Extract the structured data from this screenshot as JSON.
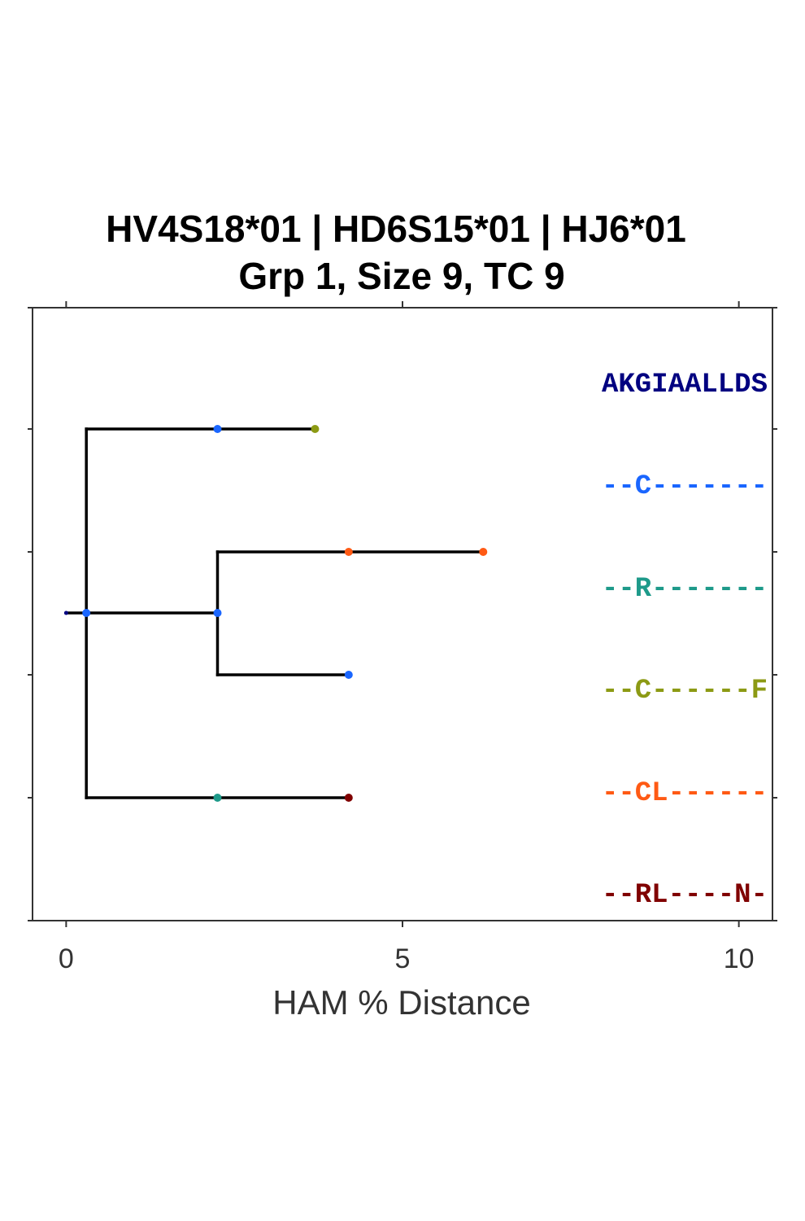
{
  "title": {
    "line1": "HV4S18*01 | HD6S15*01 | HJ6*01",
    "line2": "Grp 1, Size 9, TC 9"
  },
  "axis": {
    "xlabel": "HAM % Distance",
    "xlim": [
      -0.5,
      10.5
    ],
    "xticks": [
      "0",
      "5",
      "10"
    ],
    "xtick_values": [
      0,
      5,
      10
    ]
  },
  "colors": {
    "root": "#000080",
    "blue": "#1a66ff",
    "teal": "#1e9a8a",
    "olive": "#8c9a14",
    "orange": "#ff5a14",
    "maroon": "#800000"
  },
  "tree": {
    "root": {
      "x": 0,
      "color": "root"
    },
    "edges": [
      {
        "from": [
          0,
          "m"
        ],
        "to": [
          0.3,
          "m"
        ]
      },
      {
        "from": [
          0.3,
          "r1"
        ],
        "to": [
          0.3,
          "r5"
        ]
      },
      {
        "from": [
          0.3,
          "r1"
        ],
        "to": [
          3.7,
          "r1"
        ]
      },
      {
        "from": [
          0.3,
          "m"
        ],
        "to": [
          2.25,
          "m"
        ]
      },
      {
        "from": [
          2.25,
          "r2"
        ],
        "to": [
          2.25,
          "r4"
        ]
      },
      {
        "from": [
          2.25,
          "r2"
        ],
        "to": [
          6.2,
          "r2"
        ]
      },
      {
        "from": [
          2.25,
          "r4"
        ],
        "to": [
          4.2,
          "r4"
        ]
      },
      {
        "from": [
          0.3,
          "r5"
        ],
        "to": [
          4.2,
          "r5"
        ]
      }
    ],
    "nodes": [
      {
        "x": 0,
        "row": "m",
        "color": "root"
      },
      {
        "x": 0.3,
        "row": "m",
        "color": "blue"
      },
      {
        "x": 2.25,
        "row": "m",
        "color": "blue"
      },
      {
        "x": 2.25,
        "row": "r1",
        "color": "blue"
      },
      {
        "x": 3.7,
        "row": "r1",
        "color": "olive"
      },
      {
        "x": 4.2,
        "row": "r2",
        "color": "orange"
      },
      {
        "x": 6.2,
        "row": "r2",
        "color": "orange"
      },
      {
        "x": 4.2,
        "row": "r4",
        "color": "blue"
      },
      {
        "x": 2.25,
        "row": "r5",
        "color": "teal"
      },
      {
        "x": 4.2,
        "row": "r5",
        "color": "maroon"
      }
    ]
  },
  "sequences": [
    {
      "text": "AKGIAALLDS",
      "color": "root"
    },
    {
      "text": "--C-------",
      "color": "blue"
    },
    {
      "text": "--R-------",
      "color": "teal"
    },
    {
      "text": "--C------F",
      "color": "olive"
    },
    {
      "text": "--CL------",
      "color": "orange"
    },
    {
      "text": "--RL----N-",
      "color": "maroon"
    }
  ]
}
